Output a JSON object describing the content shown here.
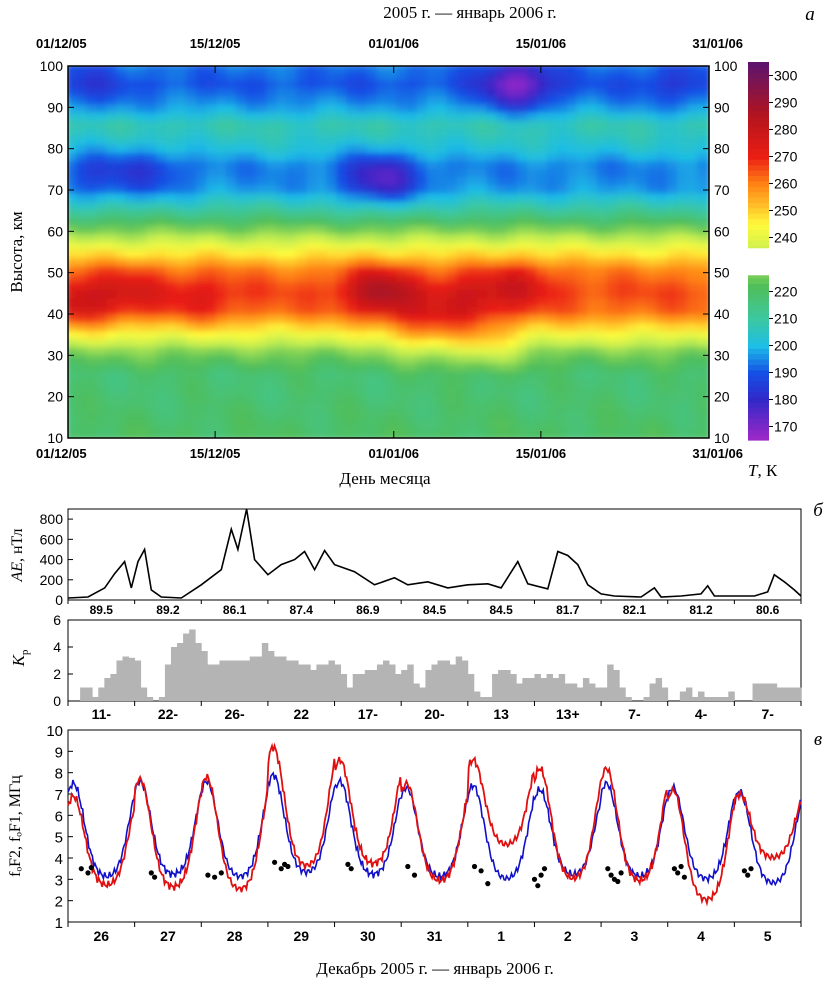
{
  "figure": {
    "top_title": "2005 г. — январь 2006 г.",
    "bottom_title": "Декабрь 2005 г. — январь 2006 г."
  },
  "chart_data": [
    {
      "type": "heatmap",
      "panel_label": "а",
      "ylabel": "Высота, км",
      "xlabel": "День месяца",
      "x_tick_labels": [
        "01/12/05",
        "15/12/05",
        "01/01/06",
        "15/01/06",
        "31/01/06"
      ],
      "x_tick_days": [
        0,
        14,
        31,
        45,
        61
      ],
      "xlim": [
        0,
        61
      ],
      "ylim": [
        10,
        100
      ],
      "y_ticks": [
        10,
        20,
        30,
        40,
        50,
        60,
        70,
        80,
        90,
        100
      ],
      "colorbar": {
        "label_letter": "T",
        "label_unit": ", К",
        "ticks": [
          170,
          180,
          190,
          200,
          210,
          220,
          240,
          250,
          260,
          270,
          280,
          290,
          300
        ],
        "range": [
          165,
          305
        ]
      },
      "profile": [
        [
          10,
          220
        ],
        [
          20,
          218
        ],
        [
          25,
          218
        ],
        [
          30,
          226
        ],
        [
          35,
          244
        ],
        [
          40,
          262
        ],
        [
          45,
          266
        ],
        [
          50,
          260
        ],
        [
          55,
          244
        ],
        [
          60,
          226
        ],
        [
          65,
          210
        ],
        [
          70,
          196
        ],
        [
          75,
          194
        ],
        [
          80,
          203
        ],
        [
          85,
          208
        ],
        [
          90,
          196
        ],
        [
          95,
          190
        ],
        [
          100,
          194
        ]
      ],
      "features": [
        {
          "day": 1,
          "alt": 42,
          "dT": 14
        },
        {
          "day": 6,
          "alt": 45,
          "dT": 10
        },
        {
          "day": 13,
          "alt": 43,
          "dT": 8
        },
        {
          "day": 30,
          "alt": 45,
          "dT": 22
        },
        {
          "day": 38,
          "alt": 43,
          "dT": 12
        },
        {
          "day": 43,
          "alt": 47,
          "dT": 12
        },
        {
          "day": 30,
          "alt": 72,
          "dT": -20
        },
        {
          "day": 3,
          "alt": 73,
          "dT": -8
        },
        {
          "day": 8,
          "alt": 74,
          "dT": -8
        },
        {
          "day": 43,
          "alt": 95,
          "dT": -22
        },
        {
          "day": 2,
          "alt": 95,
          "dT": -6
        },
        {
          "day": 58,
          "alt": 95,
          "dT": -6
        },
        {
          "day": 34,
          "alt": 35,
          "dT": 14
        },
        {
          "day": 40,
          "alt": 32,
          "dT": 12
        }
      ]
    },
    {
      "type": "line",
      "panel_label": "б",
      "ylabel_letter": "AE",
      "ylabel_unit": ", нТл",
      "ylim": [
        0,
        900
      ],
      "y_ticks": [
        0,
        200,
        400,
        600,
        800
      ],
      "xlim": [
        0,
        11
      ],
      "series": [
        {
          "values": [
            [
              0,
              20
            ],
            [
              0.3,
              30
            ],
            [
              0.55,
              120
            ],
            [
              0.7,
              260
            ],
            [
              0.85,
              380
            ],
            [
              0.95,
              120
            ],
            [
              1.05,
              380
            ],
            [
              1.15,
              500
            ],
            [
              1.25,
              100
            ],
            [
              1.4,
              30
            ],
            [
              1.7,
              20
            ],
            [
              2.0,
              150
            ],
            [
              2.3,
              300
            ],
            [
              2.45,
              700
            ],
            [
              2.55,
              500
            ],
            [
              2.68,
              900
            ],
            [
              2.8,
              400
            ],
            [
              3.0,
              250
            ],
            [
              3.2,
              350
            ],
            [
              3.4,
              400
            ],
            [
              3.55,
              480
            ],
            [
              3.7,
              300
            ],
            [
              3.85,
              490
            ],
            [
              4.0,
              350
            ],
            [
              4.3,
              280
            ],
            [
              4.6,
              150
            ],
            [
              4.9,
              220
            ],
            [
              5.1,
              150
            ],
            [
              5.4,
              180
            ],
            [
              5.7,
              120
            ],
            [
              6.0,
              150
            ],
            [
              6.3,
              160
            ],
            [
              6.5,
              120
            ],
            [
              6.75,
              380
            ],
            [
              6.9,
              160
            ],
            [
              7.2,
              110
            ],
            [
              7.35,
              480
            ],
            [
              7.5,
              440
            ],
            [
              7.65,
              350
            ],
            [
              7.8,
              150
            ],
            [
              8.0,
              60
            ],
            [
              8.2,
              40
            ],
            [
              8.6,
              30
            ],
            [
              8.8,
              120
            ],
            [
              8.9,
              30
            ],
            [
              9.2,
              40
            ],
            [
              9.5,
              60
            ],
            [
              9.6,
              140
            ],
            [
              9.7,
              40
            ],
            [
              10.0,
              40
            ],
            [
              10.3,
              40
            ],
            [
              10.5,
              80
            ],
            [
              10.6,
              250
            ],
            [
              10.75,
              180
            ],
            [
              10.9,
              100
            ],
            [
              11.0,
              40
            ]
          ]
        }
      ],
      "interval_labels": [
        "89.5",
        "89.2",
        "86.1",
        "87.4",
        "86.9",
        "84.5",
        "84.5",
        "81.7",
        "82.1",
        "81.2",
        "80.6"
      ]
    },
    {
      "type": "bar",
      "panel_label": "",
      "ylabel_letter": "K",
      "ylabel_sub": "p",
      "ylim": [
        0,
        6
      ],
      "y_ticks": [
        0,
        2,
        4,
        6
      ],
      "bar_color": "#b4b4b4",
      "values": [
        0,
        0,
        1,
        1,
        0.3,
        1,
        1.7,
        2,
        3,
        3.3,
        3.2,
        3,
        1,
        0.3,
        0,
        0.3,
        2.7,
        4,
        4.3,
        5,
        5.3,
        4.3,
        3.7,
        2.7,
        2.7,
        3,
        3,
        3,
        3,
        3,
        3.3,
        3.3,
        4.3,
        3.7,
        3.3,
        3.3,
        3,
        3,
        2.7,
        2.7,
        2.3,
        2.7,
        2.7,
        3,
        2.7,
        2,
        1,
        2,
        2,
        2.3,
        2.3,
        2.7,
        3,
        2.7,
        2,
        2.3,
        2.7,
        1.3,
        1,
        2.3,
        2.7,
        3,
        3,
        2.7,
        3.3,
        3,
        2,
        0.7,
        0.3,
        0.3,
        2,
        2.3,
        2.3,
        2,
        1.3,
        1.7,
        1.7,
        2,
        1.7,
        2,
        1.7,
        2,
        1.3,
        1.3,
        1,
        1.7,
        1.3,
        1,
        1,
        2.7,
        2.3,
        1,
        0.3,
        0,
        0,
        0.3,
        1.3,
        1.7,
        1,
        0,
        0,
        0.7,
        1,
        0.3,
        0.7,
        0.3,
        0.3,
        0.3,
        0.3,
        0.7,
        0,
        0,
        0,
        1.3,
        1.3,
        1.3,
        1.3,
        1,
        1,
        1,
        1
      ],
      "interval_labels": [
        "11-",
        "22-",
        "26-",
        "22",
        "17-",
        "20-",
        "13",
        "13+",
        "7-",
        "4-",
        "7-"
      ]
    },
    {
      "type": "line",
      "panel_label": "в",
      "ylabel": "fₒF2, fₒF1, МГц",
      "ylim": [
        1,
        10
      ],
      "y_ticks": [
        1,
        2,
        3,
        4,
        5,
        6,
        7,
        8,
        9,
        10
      ],
      "x_tick_labels": [
        "26",
        "27",
        "28",
        "29",
        "30",
        "31",
        "1",
        "2",
        "3",
        "4",
        "5"
      ],
      "series": [
        {
          "color": "#1010c8",
          "peaks": [
            7.5,
            7.6,
            7.6,
            7.9,
            7.6,
            7.3,
            7.4,
            7.2,
            7.5,
            7.3,
            7.1
          ],
          "nights": [
            3.1,
            3.2,
            3.1,
            3.3,
            3.2,
            3.1,
            3.0,
            3.2,
            3.1,
            3.0,
            2.8
          ]
        },
        {
          "color": "#e01010",
          "peaks": [
            6.9,
            7.7,
            7.8,
            9.2,
            8.6,
            7.5,
            8.6,
            8.2,
            8.2,
            7.2,
            7.0
          ],
          "nights": [
            2.7,
            2.6,
            2.5,
            3.6,
            3.7,
            2.9,
            4.6,
            3.0,
            2.9,
            2.0,
            4.0
          ]
        }
      ],
      "foF1_points": [
        [
          0.2,
          3.5
        ],
        [
          0.3,
          3.3
        ],
        [
          0.35,
          3.55
        ],
        [
          1.25,
          3.3
        ],
        [
          1.3,
          3.1
        ],
        [
          2.1,
          3.2
        ],
        [
          2.2,
          3.1
        ],
        [
          2.3,
          3.3
        ],
        [
          3.1,
          3.8
        ],
        [
          3.2,
          3.5
        ],
        [
          3.25,
          3.7
        ],
        [
          3.3,
          3.6
        ],
        [
          4.2,
          3.7
        ],
        [
          4.25,
          3.5
        ],
        [
          5.1,
          3.6
        ],
        [
          5.2,
          3.2
        ],
        [
          6.1,
          3.6
        ],
        [
          6.2,
          3.4
        ],
        [
          6.3,
          2.8
        ],
        [
          7.0,
          3.0
        ],
        [
          7.05,
          2.7
        ],
        [
          7.1,
          3.2
        ],
        [
          7.15,
          3.5
        ],
        [
          8.1,
          3.5
        ],
        [
          8.15,
          3.2
        ],
        [
          8.2,
          3.0
        ],
        [
          8.25,
          2.9
        ],
        [
          8.3,
          3.3
        ],
        [
          9.1,
          3.5
        ],
        [
          9.15,
          3.3
        ],
        [
          9.2,
          3.6
        ],
        [
          9.25,
          3.1
        ],
        [
          10.15,
          3.4
        ],
        [
          10.2,
          3.2
        ],
        [
          10.25,
          3.5
        ]
      ]
    }
  ]
}
